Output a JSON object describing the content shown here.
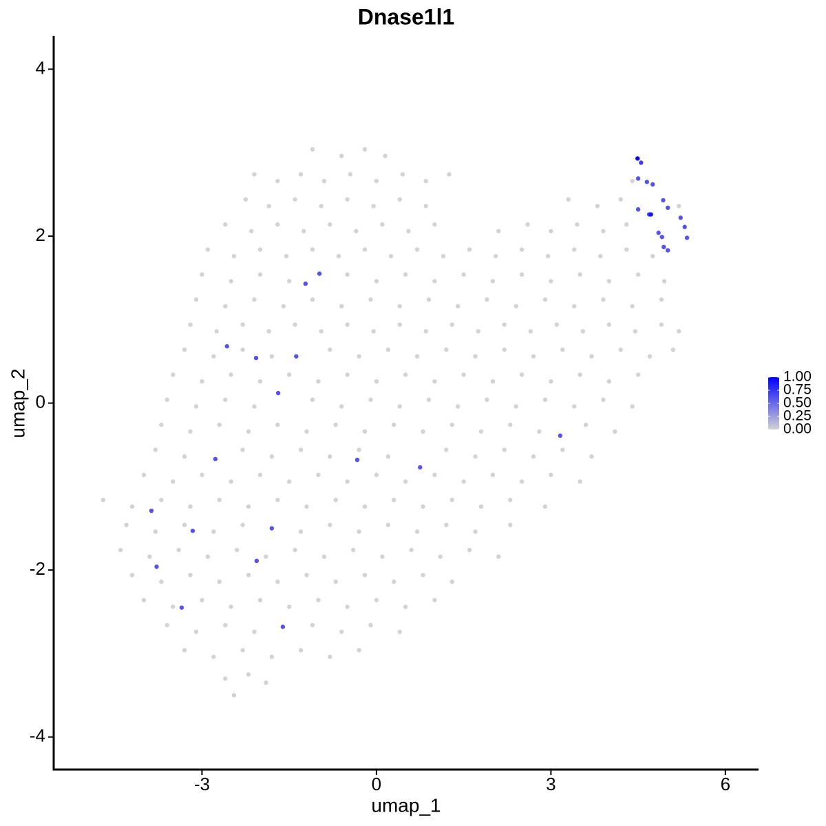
{
  "chart_data": {
    "type": "scatter",
    "title": "Dnase1l1",
    "x_label": "umap_1",
    "y_label": "umap_2",
    "xlim": [
      -5.55,
      6.57
    ],
    "ylim": [
      -4.39,
      4.4
    ],
    "xticks": [
      -3,
      0,
      3,
      6
    ],
    "yticks": [
      -4,
      -2,
      0,
      2,
      4
    ],
    "low_color": "#d3d3d3",
    "high_color": "#0000ff",
    "colorbar_lim": [
      0,
      1
    ],
    "colorbar_ticks": [
      {
        "value": 0,
        "label": "0.00"
      },
      {
        "value": 0.25,
        "label": "0.25"
      },
      {
        "value": 0.5,
        "label": "0.50"
      },
      {
        "value": 0.75,
        "label": "0.75"
      },
      {
        "value": 1,
        "label": "1.00"
      }
    ],
    "x": [
      -1.1,
      -0.6,
      -0.2,
      0.15,
      -2.1,
      -1.7,
      -1.3,
      -0.9,
      -0.45,
      0.0,
      0.45,
      0.85,
      1.25,
      4.4,
      -2.25,
      -1.85,
      -1.4,
      -0.95,
      -0.5,
      -0.05,
      0.4,
      0.85,
      3.3,
      3.8,
      4.2,
      5.2,
      -2.6,
      -2.15,
      -1.7,
      -1.25,
      -0.8,
      -0.35,
      0.1,
      0.55,
      1.0,
      2.1,
      2.6,
      3.0,
      3.45,
      3.9,
      4.3,
      -2.9,
      -2.45,
      -2.0,
      -1.55,
      -1.1,
      -0.65,
      -0.2,
      0.25,
      0.7,
      1.15,
      1.6,
      2.05,
      2.5,
      2.95,
      3.4,
      3.85,
      4.3,
      4.75,
      -3.0,
      -2.5,
      -2.0,
      -1.5,
      -0.5,
      0.0,
      0.5,
      1.0,
      1.5,
      2.0,
      2.5,
      3.0,
      3.5,
      4.0,
      4.5,
      4.95,
      -3.1,
      -2.6,
      -2.1,
      -1.6,
      -1.1,
      -0.6,
      -0.1,
      0.4,
      0.9,
      1.4,
      1.9,
      2.4,
      2.9,
      3.4,
      3.9,
      4.4,
      4.9,
      -3.2,
      -2.75,
      -2.3,
      -1.85,
      -1.4,
      -0.95,
      -0.5,
      -0.05,
      0.4,
      0.85,
      1.3,
      1.75,
      2.2,
      2.65,
      3.1,
      3.55,
      4.0,
      4.45,
      4.9,
      5.2,
      -3.3,
      -2.8,
      -2.3,
      -1.8,
      -0.8,
      -0.3,
      0.2,
      0.7,
      1.2,
      1.7,
      2.2,
      2.7,
      3.2,
      3.7,
      4.2,
      4.7,
      5.1,
      -3.5,
      -3.0,
      -2.5,
      -2.0,
      -1.5,
      -1.0,
      -0.5,
      0.0,
      0.5,
      1.0,
      1.5,
      2.0,
      2.5,
      3.0,
      3.5,
      4.0,
      4.5,
      -3.6,
      -3.1,
      -2.6,
      -2.1,
      -1.1,
      -0.6,
      -0.1,
      0.4,
      0.9,
      1.4,
      1.9,
      2.4,
      2.9,
      3.4,
      3.9,
      4.4,
      -3.7,
      -3.2,
      -2.7,
      -2.2,
      -1.7,
      -1.2,
      -0.7,
      -0.2,
      0.3,
      0.8,
      1.3,
      1.8,
      2.3,
      2.8,
      3.6,
      4.1,
      -3.8,
      -3.3,
      -2.3,
      -1.8,
      -1.3,
      -0.8,
      -0.3,
      0.2,
      1.2,
      1.7,
      2.2,
      2.7,
      3.2,
      3.7,
      -4.0,
      -3.5,
      -3.0,
      -2.5,
      -2.0,
      -1.5,
      -1.0,
      -0.5,
      0.0,
      0.5,
      1.0,
      1.5,
      2.0,
      2.5,
      3.0,
      3.5,
      -4.7,
      -4.2,
      -3.7,
      -3.2,
      -2.7,
      -2.2,
      -1.7,
      -1.2,
      -0.7,
      -0.2,
      0.3,
      0.8,
      1.3,
      1.8,
      2.3,
      2.9,
      -4.3,
      -3.8,
      -3.3,
      -2.8,
      -2.3,
      -1.3,
      -0.8,
      -0.3,
      0.2,
      0.7,
      1.2,
      1.7,
      2.3,
      -4.4,
      -3.9,
      -3.4,
      -2.9,
      -2.4,
      -1.9,
      -1.4,
      -0.9,
      -0.4,
      0.1,
      0.6,
      1.1,
      1.6,
      2.1,
      -4.2,
      -3.7,
      -3.2,
      -2.7,
      -2.2,
      -1.7,
      -1.2,
      -0.7,
      -0.2,
      0.3,
      0.8,
      1.3,
      -4.0,
      -3.5,
      -3.0,
      -2.5,
      -2.0,
      -1.5,
      -1.0,
      -0.5,
      0.0,
      0.5,
      1.0,
      -3.6,
      -3.1,
      -2.6,
      -2.1,
      -1.1,
      -0.6,
      -0.1,
      0.4,
      -3.3,
      -2.8,
      -2.3,
      -1.8,
      -1.3,
      -0.8,
      -0.3,
      -2.6,
      -2.2,
      -1.9,
      -2.45,
      4.55,
      4.5,
      4.65,
      4.75,
      4.5,
      4.69,
      4.93,
      5.01,
      5.23,
      5.3,
      5.34,
      4.85,
      4.91,
      4.94,
      5.01,
      -0.98,
      -1.22,
      -2.57,
      -2.07,
      -1.38,
      -1.69,
      -2.77,
      -0.33,
      0.75,
      3.16,
      -3.87,
      -3.16,
      -1.8,
      -3.78,
      -2.06,
      -3.35,
      -1.61,
      4.72,
      4.49
    ],
    "y": [
      3.04,
      2.96,
      3.04,
      2.96,
      2.74,
      2.66,
      2.74,
      2.66,
      2.74,
      2.66,
      2.74,
      2.66,
      2.74,
      2.66,
      2.44,
      2.36,
      2.44,
      2.36,
      2.44,
      2.36,
      2.44,
      2.36,
      2.44,
      2.36,
      2.44,
      2.36,
      2.14,
      2.06,
      2.14,
      2.06,
      2.14,
      2.06,
      2.14,
      2.06,
      2.14,
      2.06,
      2.14,
      2.06,
      2.14,
      2.06,
      2.14,
      1.84,
      1.76,
      1.84,
      1.76,
      1.84,
      1.76,
      1.84,
      1.76,
      1.84,
      1.76,
      1.84,
      1.76,
      1.84,
      1.76,
      1.84,
      1.76,
      1.84,
      1.76,
      1.54,
      1.46,
      1.54,
      1.46,
      1.54,
      1.46,
      1.54,
      1.46,
      1.54,
      1.46,
      1.54,
      1.46,
      1.54,
      1.46,
      1.54,
      1.46,
      1.24,
      1.16,
      1.24,
      1.16,
      1.24,
      1.16,
      1.24,
      1.16,
      1.24,
      1.16,
      1.24,
      1.16,
      1.24,
      1.16,
      1.24,
      1.16,
      1.24,
      0.94,
      0.86,
      0.94,
      0.86,
      0.94,
      0.86,
      0.94,
      0.86,
      0.94,
      0.86,
      0.94,
      0.86,
      0.94,
      0.86,
      0.94,
      0.86,
      0.94,
      0.86,
      0.94,
      0.86,
      0.64,
      0.56,
      0.64,
      0.56,
      0.64,
      0.56,
      0.64,
      0.56,
      0.64,
      0.56,
      0.64,
      0.56,
      0.64,
      0.56,
      0.64,
      0.56,
      0.64,
      0.34,
      0.26,
      0.34,
      0.26,
      0.34,
      0.26,
      0.34,
      0.26,
      0.34,
      0.26,
      0.34,
      0.26,
      0.34,
      0.26,
      0.34,
      0.26,
      0.34,
      0.04,
      -0.04,
      0.04,
      -0.04,
      0.04,
      -0.04,
      0.04,
      -0.04,
      0.04,
      -0.04,
      0.04,
      -0.04,
      0.04,
      -0.04,
      0.04,
      -0.04,
      -0.26,
      -0.34,
      -0.26,
      -0.34,
      -0.26,
      -0.34,
      -0.26,
      -0.34,
      -0.26,
      -0.34,
      -0.26,
      -0.34,
      -0.26,
      -0.34,
      -0.26,
      -0.34,
      -0.56,
      -0.64,
      -0.56,
      -0.64,
      -0.56,
      -0.64,
      -0.56,
      -0.64,
      -0.56,
      -0.64,
      -0.56,
      -0.64,
      -0.56,
      -0.64,
      -0.86,
      -0.94,
      -0.86,
      -0.94,
      -0.86,
      -0.94,
      -0.86,
      -0.94,
      -0.86,
      -0.94,
      -0.86,
      -0.94,
      -0.86,
      -0.94,
      -0.86,
      -0.94,
      -1.16,
      -1.24,
      -1.16,
      -1.24,
      -1.16,
      -1.24,
      -1.16,
      -1.24,
      -1.16,
      -1.24,
      -1.16,
      -1.24,
      -1.16,
      -1.24,
      -1.16,
      -1.24,
      -1.46,
      -1.54,
      -1.46,
      -1.54,
      -1.46,
      -1.54,
      -1.46,
      -1.54,
      -1.46,
      -1.54,
      -1.46,
      -1.54,
      -1.46,
      -1.76,
      -1.84,
      -1.76,
      -1.84,
      -1.76,
      -1.84,
      -1.76,
      -1.84,
      -1.76,
      -1.84,
      -1.76,
      -1.84,
      -1.76,
      -1.84,
      -2.06,
      -2.14,
      -2.06,
      -2.14,
      -2.06,
      -2.14,
      -2.06,
      -2.14,
      -2.06,
      -2.14,
      -2.06,
      -2.14,
      -2.36,
      -2.44,
      -2.36,
      -2.44,
      -2.36,
      -2.44,
      -2.36,
      -2.44,
      -2.36,
      -2.44,
      -2.36,
      -2.66,
      -2.74,
      -2.66,
      -2.74,
      -2.66,
      -2.74,
      -2.66,
      -2.74,
      -2.96,
      -3.04,
      -2.96,
      -3.04,
      -2.96,
      -3.04,
      -2.96,
      -3.3,
      -3.25,
      -3.35,
      -3.5,
      2.88,
      2.69,
      2.65,
      2.62,
      2.32,
      2.26,
      2.43,
      2.34,
      2.22,
      2.11,
      1.98,
      2.04,
      1.99,
      1.87,
      1.83,
      1.55,
      1.43,
      0.68,
      0.54,
      0.56,
      0.12,
      -0.67,
      -0.68,
      -0.77,
      -0.39,
      -1.29,
      -1.53,
      -1.5,
      -1.96,
      -1.89,
      -2.45,
      -2.68,
      2.26,
      2.93
    ],
    "values": [
      0,
      0,
      0,
      0,
      0,
      0,
      0,
      0,
      0,
      0,
      0,
      0,
      0,
      0,
      0,
      0,
      0,
      0,
      0,
      0,
      0,
      0,
      0,
      0,
      0,
      0,
      0,
      0,
      0,
      0,
      0,
      0,
      0,
      0,
      0,
      0,
      0,
      0,
      0,
      0,
      0,
      0,
      0,
      0,
      0,
      0,
      0,
      0,
      0,
      0,
      0,
      0,
      0,
      0,
      0,
      0,
      0,
      0,
      0,
      0,
      0,
      0,
      0,
      0,
      0,
      0,
      0,
      0,
      0,
      0,
      0,
      0,
      0,
      0,
      0,
      0,
      0,
      0,
      0,
      0,
      0,
      0,
      0,
      0,
      0,
      0,
      0,
      0,
      0,
      0,
      0,
      0,
      0,
      0,
      0,
      0,
      0,
      0,
      0,
      0,
      0,
      0,
      0,
      0,
      0,
      0,
      0,
      0,
      0,
      0,
      0,
      0,
      0,
      0,
      0,
      0,
      0,
      0,
      0,
      0,
      0,
      0,
      0,
      0,
      0,
      0,
      0,
      0,
      0,
      0,
      0,
      0,
      0,
      0,
      0,
      0,
      0,
      0,
      0,
      0,
      0,
      0,
      0,
      0,
      0,
      0,
      0,
      0,
      0,
      0,
      0,
      0,
      0,
      0,
      0,
      0,
      0,
      0,
      0,
      0,
      0,
      0,
      0,
      0,
      0,
      0,
      0,
      0,
      0,
      0,
      0,
      0,
      0,
      0,
      0,
      0,
      0,
      0,
      0,
      0,
      0,
      0,
      0,
      0,
      0,
      0,
      0,
      0,
      0,
      0,
      0,
      0,
      0,
      0,
      0,
      0,
      0,
      0,
      0,
      0,
      0,
      0,
      0,
      0,
      0,
      0,
      0,
      0,
      0,
      0,
      0,
      0,
      0,
      0,
      0,
      0,
      0,
      0,
      0,
      0,
      0,
      0,
      0,
      0,
      0,
      0,
      0,
      0,
      0,
      0,
      0,
      0,
      0,
      0,
      0,
      0,
      0,
      0,
      0,
      0,
      0,
      0,
      0,
      0,
      0,
      0,
      0,
      0,
      0,
      0,
      0,
      0,
      0,
      0,
      0,
      0,
      0,
      0,
      0,
      0,
      0,
      0,
      0,
      0,
      0,
      0,
      0,
      0,
      0,
      0,
      0,
      0,
      0,
      0,
      0,
      0,
      0,
      0,
      0,
      0,
      0,
      0,
      0,
      0,
      0,
      0,
      0,
      0,
      0,
      0,
      0,
      0,
      0,
      0.7,
      0.6,
      0.6,
      0.6,
      0.6,
      0.7,
      0.6,
      0.6,
      0.6,
      0.6,
      0.6,
      0.6,
      0.6,
      0.6,
      0.6,
      0.6,
      0.6,
      0.6,
      0.6,
      0.6,
      0.6,
      0.6,
      0.6,
      0.6,
      0.6,
      0.6,
      0.6,
      0.6,
      0.6,
      0.6,
      0.6,
      0.6,
      0.9,
      1
    ]
  }
}
